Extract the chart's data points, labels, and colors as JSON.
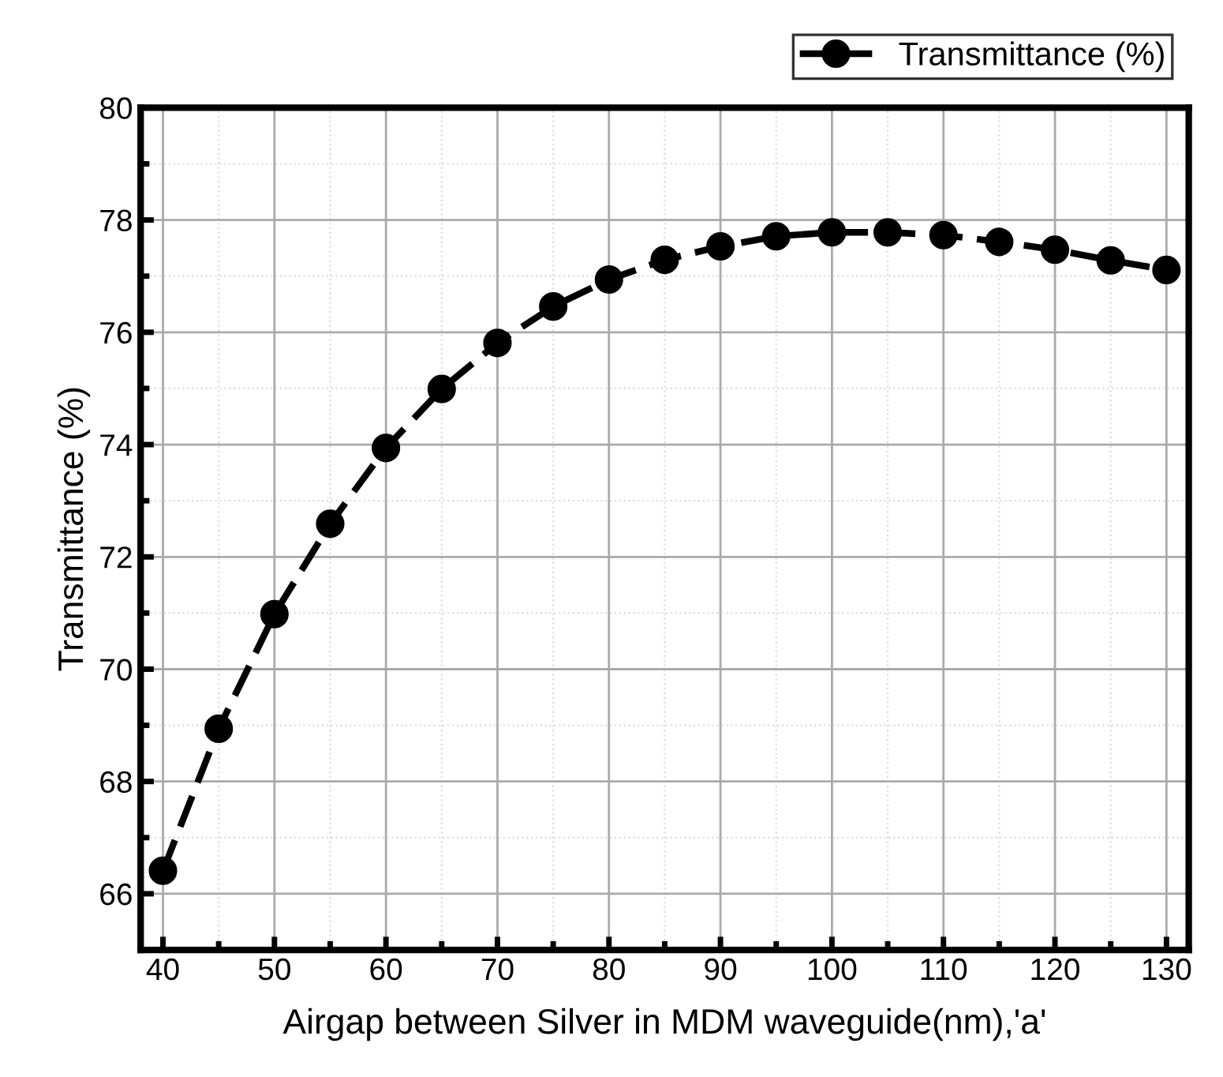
{
  "chart_data": {
    "type": "line",
    "xlabel": "Airgap between Silver in MDM waveguide(nm),'a'",
    "ylabel": "Transmittance (%)",
    "x": [
      40,
      45,
      50,
      55,
      60,
      65,
      70,
      75,
      80,
      85,
      90,
      95,
      100,
      105,
      110,
      115,
      120,
      125,
      130
    ],
    "series": [
      {
        "name": "Transmittance (%)",
        "color": "#000000",
        "values": [
          66.41,
          68.94,
          70.98,
          72.59,
          73.94,
          74.99,
          75.81,
          76.46,
          76.94,
          77.29,
          77.53,
          77.71,
          77.78,
          77.78,
          77.73,
          77.61,
          77.47,
          77.28,
          77.11
        ]
      }
    ],
    "xlim": [
      38,
      132
    ],
    "ylim": [
      65,
      80
    ],
    "xticks": [
      40,
      50,
      60,
      70,
      80,
      90,
      100,
      110,
      120,
      130
    ],
    "yticks": [
      66,
      68,
      70,
      72,
      74,
      76,
      78,
      80
    ],
    "grid": true,
    "legend": "top right",
    "marker": "circle",
    "line_style": "dashed"
  }
}
